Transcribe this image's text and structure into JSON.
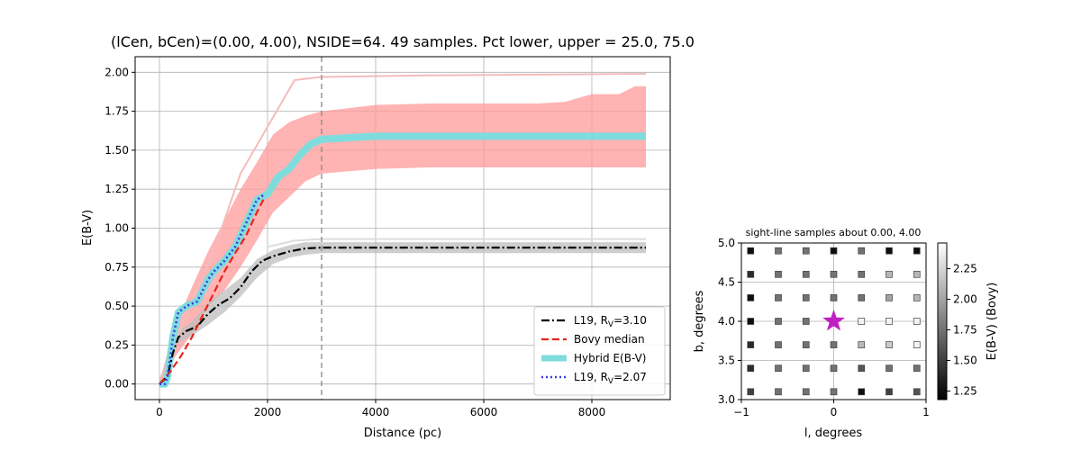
{
  "chart_data": [
    {
      "type": "line",
      "title": "(lCen, bCen)=(0.00, 4.00), NSIDE=64. 49 samples. Pct lower, upper = 25.0, 75.0",
      "xlabel": "Distance (pc)",
      "ylabel": "E(B-V)",
      "xlim": [
        -450,
        9450
      ],
      "ylim": [
        -0.1,
        2.1
      ],
      "xticks": [
        0,
        2000,
        4000,
        6000,
        8000
      ],
      "yticks": [
        0.0,
        0.25,
        0.5,
        0.75,
        1.0,
        1.25,
        1.5,
        1.75,
        2.0
      ],
      "grid": true,
      "legend_position": "lower-right",
      "vline_x": 3000,
      "series": [
        {
          "name": "L19, R_V=3.10",
          "style": "dashdot",
          "color": "#000000",
          "x": [
            0,
            150,
            250,
            350,
            500,
            700,
            900,
            1100,
            1300,
            1500,
            1700,
            1900,
            2100,
            2400,
            2700,
            3000,
            4000,
            9000
          ],
          "y": [
            0.0,
            0.05,
            0.2,
            0.3,
            0.34,
            0.37,
            0.45,
            0.51,
            0.55,
            0.62,
            0.72,
            0.79,
            0.82,
            0.85,
            0.87,
            0.875,
            0.875,
            0.875
          ]
        },
        {
          "name": "Bovy median",
          "style": "dashed",
          "color": "#e8231a",
          "x": [
            0,
            200,
            400,
            600,
            800,
            1000,
            1200,
            1400,
            1600,
            1800,
            1950
          ],
          "y": [
            0.0,
            0.08,
            0.18,
            0.3,
            0.44,
            0.58,
            0.72,
            0.84,
            0.95,
            1.1,
            1.2
          ]
        },
        {
          "name": "Hybrid E(B-V)",
          "style": "thick",
          "color": "#7fdcdc",
          "x": [
            0,
            100,
            150,
            250,
            350,
            500,
            700,
            800,
            900,
            1000,
            1200,
            1400,
            1600,
            1800,
            2000,
            2200,
            2400,
            2600,
            2800,
            3000,
            4000,
            9000
          ],
          "y": [
            0.0,
            0.0,
            0.05,
            0.3,
            0.46,
            0.5,
            0.53,
            0.6,
            0.67,
            0.72,
            0.79,
            0.88,
            1.03,
            1.18,
            1.22,
            1.33,
            1.38,
            1.47,
            1.54,
            1.57,
            1.59,
            1.59
          ]
        },
        {
          "name": "L19, R_V=2.07",
          "style": "dotted",
          "color": "#3a3aea",
          "x": [
            0,
            100,
            150,
            250,
            350,
            500,
            700,
            800,
            900,
            1000,
            1200,
            1400,
            1600,
            1800,
            1950
          ],
          "y": [
            0.0,
            0.0,
            0.05,
            0.3,
            0.46,
            0.5,
            0.53,
            0.6,
            0.67,
            0.72,
            0.79,
            0.88,
            1.03,
            1.18,
            1.22
          ]
        }
      ],
      "extra_lines": [
        {
          "role": "Bovy median (grey dashed, beyond 2000 pc)",
          "color": "#555555",
          "x": [
            2000,
            2200,
            2400,
            2600,
            2800,
            3000,
            4000,
            9000
          ],
          "y": [
            1.22,
            1.33,
            1.38,
            1.47,
            1.54,
            1.57,
            1.59,
            1.59
          ]
        },
        {
          "role": "faint pink upper percentile",
          "color": "#f4bcbc",
          "x": [
            0,
            500,
            1000,
            1500,
            2000,
            2500,
            3000,
            5000,
            9000
          ],
          "y": [
            0.02,
            0.45,
            0.85,
            1.35,
            1.65,
            1.95,
            1.97,
            1.98,
            1.99
          ]
        },
        {
          "role": "faint grey R_V=2.07 level",
          "color": "#dddddd",
          "x": [
            2000,
            2500,
            3000,
            9000
          ],
          "y": [
            0.88,
            0.92,
            0.93,
            0.93
          ]
        }
      ],
      "bands": [
        {
          "color": "#ff9a9a",
          "x": [
            0,
            300,
            600,
            900,
            1200,
            1500,
            1800,
            2100,
            2400,
            2700,
            3000,
            4000,
            5000,
            6000,
            7000,
            7500,
            8000,
            8500,
            8800,
            9000
          ],
          "lower": [
            0.0,
            0.18,
            0.32,
            0.5,
            0.6,
            0.75,
            0.92,
            1.1,
            1.2,
            1.3,
            1.35,
            1.38,
            1.39,
            1.39,
            1.39,
            1.39,
            1.39,
            1.39,
            1.39,
            1.39
          ],
          "upper": [
            0.02,
            0.38,
            0.62,
            0.85,
            1.05,
            1.25,
            1.42,
            1.6,
            1.68,
            1.72,
            1.75,
            1.79,
            1.8,
            1.8,
            1.8,
            1.81,
            1.86,
            1.86,
            1.91,
            1.91
          ]
        },
        {
          "color": "#bdbdbd",
          "x": [
            0,
            300,
            600,
            900,
            1200,
            1500,
            1800,
            2100,
            2400,
            2700,
            3000,
            9000
          ],
          "lower": [
            0.0,
            0.25,
            0.31,
            0.38,
            0.46,
            0.56,
            0.68,
            0.77,
            0.81,
            0.83,
            0.84,
            0.84
          ],
          "upper": [
            0.0,
            0.33,
            0.4,
            0.52,
            0.6,
            0.68,
            0.8,
            0.86,
            0.89,
            0.91,
            0.91,
            0.91
          ]
        }
      ]
    },
    {
      "type": "scatter",
      "title": "sight-line samples about 0.00, 4.00",
      "xlabel": "l, degrees",
      "ylabel": "b, degrees",
      "xlim": [
        -1,
        1
      ],
      "ylim": [
        3.0,
        5.0
      ],
      "xticks": [
        -1,
        0,
        1
      ],
      "yticks": [
        3.0,
        3.5,
        4.0,
        4.5,
        5.0
      ],
      "grid": true,
      "colorbar": {
        "label": "E(B-V) (Bovy)",
        "range": [
          1.18,
          2.46
        ],
        "ticks": [
          1.25,
          1.5,
          1.75,
          2.0,
          2.25
        ],
        "colormap": "gray"
      },
      "center": {
        "l": 0.0,
        "b": 4.0,
        "marker": "star",
        "color": "#c020c0"
      },
      "l_values": [
        -0.9,
        -0.6,
        -0.3,
        0.0,
        0.3,
        0.6,
        0.9
      ],
      "b_values": [
        4.9,
        4.6,
        4.3,
        4.0,
        3.7,
        3.4,
        3.1
      ],
      "values": [
        [
          1.25,
          1.75,
          1.75,
          1.25,
          1.75,
          1.25,
          1.25
        ],
        [
          1.4,
          1.75,
          1.75,
          1.75,
          1.75,
          2.1,
          2.1
        ],
        [
          1.25,
          1.75,
          1.75,
          1.75,
          1.75,
          2.0,
          2.1
        ],
        [
          1.25,
          1.75,
          1.75,
          2.4,
          2.4,
          2.4,
          2.4
        ],
        [
          1.4,
          1.75,
          1.75,
          1.75,
          2.1,
          2.2,
          2.4
        ],
        [
          1.4,
          1.75,
          1.75,
          1.75,
          1.6,
          1.75,
          1.75
        ],
        [
          1.5,
          1.75,
          1.75,
          1.75,
          1.25,
          1.5,
          1.6
        ]
      ]
    }
  ],
  "legend": {
    "items": [
      {
        "label": "L19, R",
        "sub": "V",
        "suffix": "=3.10",
        "style": "dashdot",
        "color": "#000000"
      },
      {
        "label": "Bovy median",
        "sub": "",
        "suffix": "",
        "style": "dashed",
        "color": "#e8231a"
      },
      {
        "label": "Hybrid E(B-V)",
        "sub": "",
        "suffix": "",
        "style": "thick",
        "color": "#7fdcdc"
      },
      {
        "label": "L19, R",
        "sub": "V",
        "suffix": "=2.07",
        "style": "dotted",
        "color": "#3a3aea"
      }
    ]
  }
}
